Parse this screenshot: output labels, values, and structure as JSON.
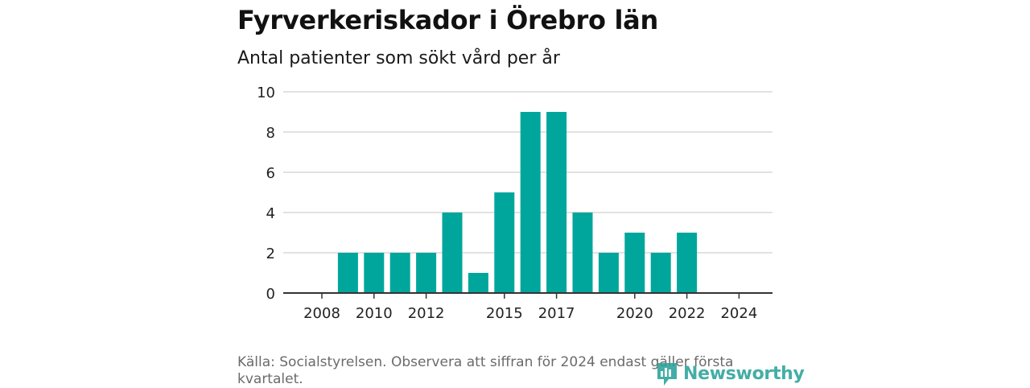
{
  "title": "Fyrverkeriskador i Örebro län",
  "subtitle": "Antal patienter som sökt vård per år",
  "source": "Källa: Socialstyrelsen. Observera att siffran för 2024 endast gäller första kvartalet.",
  "brand": {
    "name": "Newsworthy",
    "icon": "newsworthy-logo-icon",
    "color": "#2aa39a"
  },
  "chart_data": {
    "type": "bar",
    "x": [
      2008,
      2009,
      2010,
      2011,
      2012,
      2013,
      2014,
      2015,
      2016,
      2017,
      2018,
      2019,
      2020,
      2021,
      2022,
      2023,
      2024
    ],
    "values": [
      0,
      2,
      2,
      2,
      2,
      4,
      1,
      5,
      9,
      9,
      4,
      2,
      3,
      2,
      3,
      0,
      0
    ],
    "x_tick_labels": [
      "2008",
      "2010",
      "2012",
      "2015",
      "2017",
      "2020",
      "2022",
      "2024"
    ],
    "y_ticks": [
      0,
      2,
      4,
      6,
      8,
      10
    ],
    "ylim": [
      0,
      10
    ],
    "bar_color": "#00a69c",
    "grid": true,
    "title": "Fyrverkeriskador i Örebro län",
    "subtitle": "Antal patienter som sökt vård per år",
    "xlabel": "",
    "ylabel": ""
  }
}
